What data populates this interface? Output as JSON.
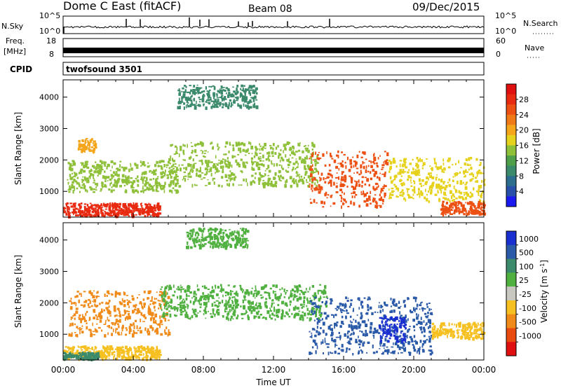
{
  "header": {
    "station": "Dome C East (fitACF)",
    "beam": "Beam 08",
    "date": "09/Dec/2015"
  },
  "aux_panels": {
    "nsky": {
      "left_label": "N.Sky",
      "right_label": "N.Search",
      "left_ticks": [
        "10^5",
        "10^0"
      ],
      "right_ticks": [
        "10^5",
        "10^0"
      ]
    },
    "freq": {
      "left_label_line1": "Freq.",
      "left_label_line2": "[MHz]",
      "right_label": "Nave",
      "left_ticks": [
        "18",
        "8"
      ],
      "right_ticks": [
        "60",
        "0"
      ]
    },
    "cpid": {
      "label": "CPID",
      "program": "twofsound 3501"
    }
  },
  "chart_data": [
    {
      "type": "heatmap",
      "title": "",
      "xlabel": "",
      "ylabel": "Slant Range [km]",
      "xlim": [
        "00:00",
        "00:00"
      ],
      "x_ticks": [
        "00:00",
        "04:00",
        "08:00",
        "12:00",
        "16:00",
        "20:00",
        "00:00"
      ],
      "y_ticks": [
        1000,
        2000,
        3000,
        4000
      ],
      "ylim": [
        180,
        4550
      ],
      "colorbar": {
        "label": "Power [dB]",
        "ticks": [
          "28",
          "24",
          "20",
          "16",
          "12",
          "8",
          "4"
        ],
        "range": [
          0,
          32
        ],
        "colors": [
          "#1a1af0",
          "#2850a8",
          "#2d6e8f",
          "#3c8a6c",
          "#4f9f4a",
          "#8fc03a",
          "#e6d21c",
          "#f5a51a",
          "#f07a18",
          "#ec5012",
          "#e82a10",
          "#e01010"
        ]
      },
      "scatter_regions": [
        {
          "t0": 0.0,
          "t1": 5.5,
          "r0": 250,
          "r1": 650,
          "value": 28
        },
        {
          "t0": 0.2,
          "t1": 6.5,
          "r0": 1000,
          "r1": 2000,
          "value": 14
        },
        {
          "t0": 0.8,
          "t1": 1.8,
          "r0": 2300,
          "r1": 2700,
          "value": 20
        },
        {
          "t0": 6.0,
          "t1": 14.5,
          "r0": 1200,
          "r1": 2600,
          "value": 15
        },
        {
          "t0": 6.5,
          "t1": 11.0,
          "r0": 3700,
          "r1": 4400,
          "value": 8
        },
        {
          "t0": 14.0,
          "t1": 18.5,
          "r0": 500,
          "r1": 2300,
          "value": 26
        },
        {
          "t0": 18.5,
          "t1": 24.0,
          "r0": 700,
          "r1": 2100,
          "value": 18
        },
        {
          "t0": 21.5,
          "t1": 24.0,
          "r0": 300,
          "r1": 700,
          "value": 26
        }
      ]
    },
    {
      "type": "heatmap",
      "title": "",
      "xlabel": "Time UT",
      "ylabel": "Slant Range [km]",
      "x_ticks": [
        "00:00",
        "04:00",
        "08:00",
        "12:00",
        "16:00",
        "20:00",
        "00:00"
      ],
      "y_ticks": [
        1000,
        2000,
        3000,
        4000
      ],
      "ylim": [
        180,
        4550
      ],
      "colorbar": {
        "label": "Velocity [m s^-1]",
        "ticks": [
          "1000",
          "500",
          "100",
          "25",
          "-25",
          "-100",
          "-500",
          "-1000"
        ],
        "colors": [
          "#1a2fd0",
          "#2a5aa8",
          "#3c8a6c",
          "#50b040",
          "#c8c8c0",
          "#f5c020",
          "#f08a18",
          "#e84a10",
          "#e01010"
        ]
      },
      "scatter_regions": [
        {
          "t0": 0.0,
          "t1": 5.5,
          "r0": 250,
          "r1": 650,
          "value": "-100"
        },
        {
          "t0": 0.0,
          "t1": 2.0,
          "r0": 250,
          "r1": 450,
          "value": "100"
        },
        {
          "t0": 0.3,
          "t1": 6.0,
          "r0": 1000,
          "r1": 2400,
          "value": "-500"
        },
        {
          "t0": 5.5,
          "t1": 15.0,
          "r0": 1500,
          "r1": 2600,
          "value": "25"
        },
        {
          "t0": 14.0,
          "t1": 21.0,
          "r0": 400,
          "r1": 2200,
          "value": "500"
        },
        {
          "t0": 18.0,
          "t1": 19.5,
          "r0": 800,
          "r1": 1600,
          "value": "1000"
        },
        {
          "t0": 21.0,
          "t1": 24.0,
          "r0": 900,
          "r1": 1400,
          "value": "-100"
        },
        {
          "t0": 7.0,
          "t1": 10.5,
          "r0": 3800,
          "r1": 4400,
          "value": "25"
        }
      ]
    }
  ]
}
